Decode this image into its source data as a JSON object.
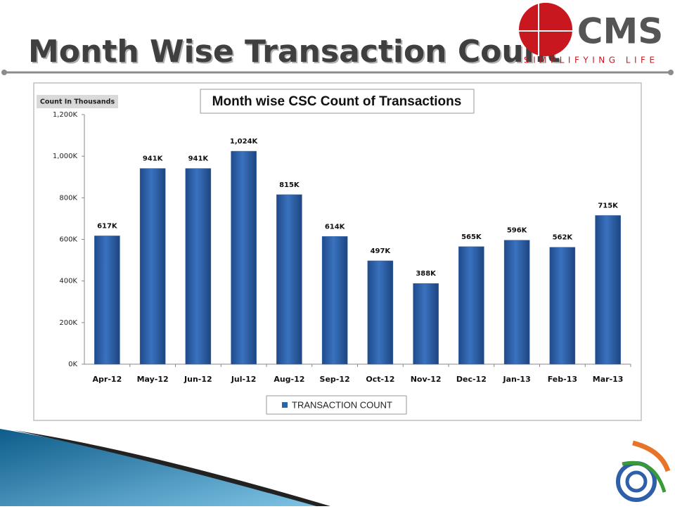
{
  "header": {
    "title": "Month Wise Transaction Count",
    "logo_name": "CMS",
    "logo_tagline": "SIMPLIFYING LIFE"
  },
  "chart_data": {
    "type": "bar",
    "title": "Month wise CSC Count of Transactions",
    "y_label": "Count In Thousands",
    "categories": [
      "Apr-12",
      "May-12",
      "Jun-12",
      "Jul-12",
      "Aug-12",
      "Sep-12",
      "Oct-12",
      "Nov-12",
      "Dec-12",
      "Jan-13",
      "Feb-13",
      "Mar-13"
    ],
    "series": [
      {
        "name": "TRANSACTION COUNT",
        "color": "#2e62a8",
        "values": [
          617,
          941,
          941,
          1024,
          815,
          614,
          497,
          388,
          565,
          596,
          562,
          715
        ],
        "value_labels": [
          "617K",
          "941K",
          "941K",
          "1,024K",
          "815K",
          "614K",
          "497K",
          "388K",
          "565K",
          "596K",
          "562K",
          "715K"
        ]
      }
    ],
    "ylim": [
      0,
      1200
    ],
    "yticks": [
      {
        "value": 0,
        "label": "0K"
      },
      {
        "value": 200,
        "label": "200K"
      },
      {
        "value": 400,
        "label": "400K"
      },
      {
        "value": 600,
        "label": "600K"
      },
      {
        "value": 800,
        "label": "800K"
      },
      {
        "value": 1000,
        "label": "1,000K"
      },
      {
        "value": 1200,
        "label": "1,200K"
      }
    ],
    "legend": "bottom"
  }
}
